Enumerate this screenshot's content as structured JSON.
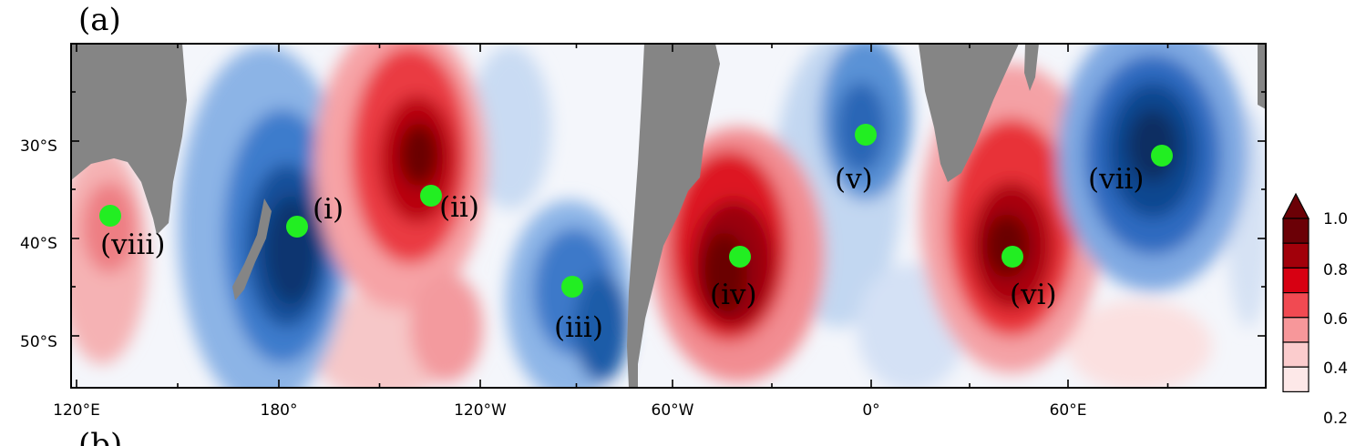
{
  "panel_labels": {
    "top": "(a)",
    "bottom": "(b)"
  },
  "map": {
    "lon_labels": [
      "120°E",
      "180°",
      "120°W",
      "60°W",
      "0°",
      "60°E"
    ],
    "lat_labels": [
      "30°S",
      "40°S",
      "50°S"
    ],
    "colors": {
      "land": "#858585",
      "positive_strong": "#a80008",
      "negative_strong": "#0a3d78",
      "marker": "#22ee22"
    }
  },
  "points": [
    {
      "label": "(i)"
    },
    {
      "label": "(ii)"
    },
    {
      "label": "(iii)"
    },
    {
      "label": "(iv)"
    },
    {
      "label": "(v)"
    },
    {
      "label": "(vi)"
    },
    {
      "label": "(vii)"
    },
    {
      "label": "(viii)"
    }
  ],
  "colorbar": {
    "labels": [
      "1.0",
      "0.8",
      "0.6",
      "0.4",
      "0.2"
    ],
    "colors": [
      "#6b0006",
      "#a2000a",
      "#d70012",
      "#f14a52",
      "#f7979a",
      "#fbcccd",
      "#fde8e8"
    ]
  }
}
